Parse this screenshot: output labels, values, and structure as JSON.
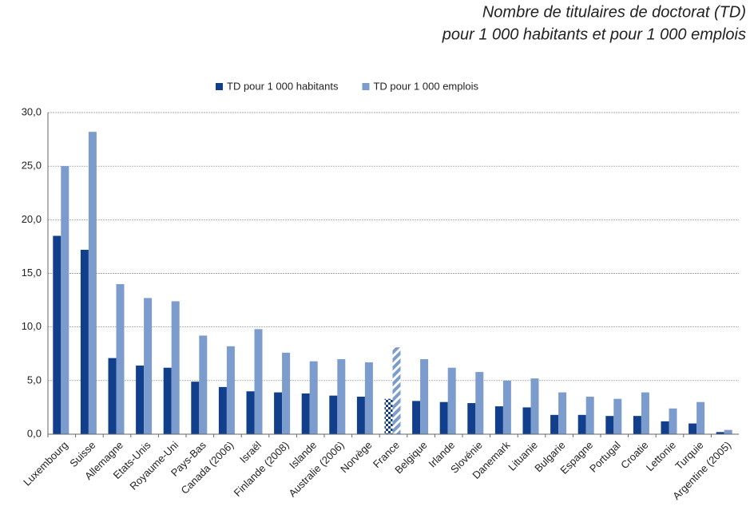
{
  "chart_data": {
    "type": "bar",
    "title": [
      "Nombre de titulaires de doctorat (TD)",
      "pour 1 000 habitants et pour 1 000 emplois"
    ],
    "categories": [
      "Luxembourg",
      "Suisse",
      "Allemagne",
      "Etats-Unis",
      "Royaume-Uni",
      "Pays-Bas",
      "Canada (2006)",
      "Israël",
      "Finlande (2008)",
      "Islande",
      "Australie (2006)",
      "Norvège",
      "France",
      "Belgique",
      "Irlande",
      "Slovénie",
      "Danemark",
      "Lituanie",
      "Bulgarie",
      "Espagne",
      "Portugal",
      "Croatie",
      "Lettonie",
      "Turquie",
      "Argentine (2005)"
    ],
    "series": [
      {
        "name": "TD pour 1 000 habitants",
        "color": "#123f8c",
        "values": [
          18.5,
          17.2,
          7.1,
          6.4,
          6.2,
          4.9,
          4.4,
          4.0,
          3.9,
          3.8,
          3.6,
          3.5,
          3.3,
          3.1,
          3.0,
          2.9,
          2.6,
          2.5,
          1.8,
          1.8,
          1.7,
          1.7,
          1.2,
          1.0,
          0.2
        ]
      },
      {
        "name": "TD pour 1 000 emplois",
        "color": "#7b9ccc",
        "values": [
          25.0,
          28.2,
          14.0,
          12.7,
          12.4,
          9.2,
          8.2,
          9.8,
          7.6,
          6.8,
          7.0,
          6.7,
          8.1,
          7.0,
          6.2,
          5.8,
          5.0,
          5.2,
          3.9,
          3.5,
          3.3,
          3.9,
          2.4,
          3.0,
          0.4
        ]
      }
    ],
    "highlight_index": 12,
    "ylim": [
      0,
      30
    ],
    "yticks": [
      {
        "value": 0,
        "label": "0,0"
      },
      {
        "value": 5,
        "label": "5,0"
      },
      {
        "value": 10,
        "label": "10,0"
      },
      {
        "value": 15,
        "label": "15,0"
      },
      {
        "value": 20,
        "label": "20,0"
      },
      {
        "value": 25,
        "label": "25,0"
      },
      {
        "value": 30,
        "label": "30,0"
      }
    ],
    "grid": true,
    "legend": "top"
  }
}
